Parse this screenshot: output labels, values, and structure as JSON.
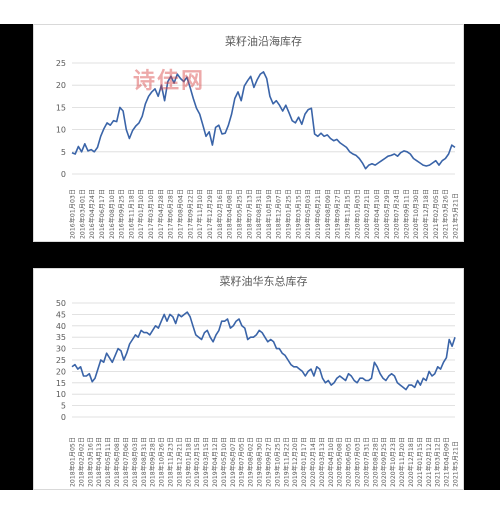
{
  "header_strip": "",
  "footer_strip": "",
  "watermark": "诗佳网",
  "colors": {
    "line": "#3a64a8",
    "grid": "#d9d9d9",
    "axis_text": "#595959",
    "watermark": "#d64040"
  },
  "chart_data": [
    {
      "type": "line",
      "title": "菜籽油沿海库存",
      "xlabel": "",
      "ylabel": "",
      "ylim": [
        0,
        25
      ],
      "yticks": [
        0,
        5,
        10,
        15,
        20,
        25
      ],
      "grid": true,
      "legend": "none",
      "tick_labels": [
        "2016年01月03日",
        "2016年03月01日",
        "2016年04月24日",
        "2016年06月17日",
        "2016年08月10日",
        "2016年09月25日",
        "2016年11月18日",
        "2017年01月10日",
        "2017年03月10日",
        "2017年04月28日",
        "2017年06月28日",
        "2017年08月04日",
        "2017年09月22日",
        "2017年11月10日",
        "2017年12月29日",
        "2018年02月16日",
        "2018年04月08日",
        "2018年05月25日",
        "2018年07月13日",
        "2018年08月31日",
        "2018年10月19日",
        "2018年12月07日",
        "2019年01月25日",
        "2019年03月15日",
        "2019年05月03日",
        "2019年06月21日",
        "2019年08月09日",
        "2019年09月27日",
        "2019年11月15日",
        "2020年01月03日",
        "2020年02月21日",
        "2020年04月10日",
        "2020年05月29日",
        "2020年07月24日",
        "2020年09月11日",
        "2020年10月30日",
        "2020年12月18日",
        "2021年02月05日",
        "2021年03月26日",
        "2021年5月21日"
      ],
      "series": [
        {
          "values": [
            4.8,
            4.5,
            6.2,
            5.0,
            6.8,
            5.2,
            5.5,
            5.0,
            6.0,
            8.5,
            10.2,
            11.5,
            11.0,
            12.0,
            11.8,
            15.0,
            14.2,
            10.0,
            8.0,
            9.8,
            10.8,
            11.5,
            13.0,
            15.8,
            17.5,
            18.5,
            19.2,
            17.5,
            20.0,
            16.5,
            20.8,
            22.0,
            20.5,
            22.5,
            21.5,
            20.8,
            21.8,
            19.5,
            17.0,
            14.8,
            13.5,
            11.0,
            8.5,
            9.5,
            6.5,
            10.5,
            11.0,
            9.0,
            9.2,
            11.0,
            13.5,
            17.0,
            18.5,
            16.5,
            19.8,
            21.0,
            22.0,
            19.5,
            21.2,
            22.5,
            23.0,
            21.5,
            17.5,
            15.8,
            16.5,
            15.5,
            14.2,
            15.5,
            13.8,
            12.0,
            11.5,
            12.8,
            11.2,
            13.5,
            14.5,
            14.8,
            9.0,
            8.5,
            9.2,
            8.5,
            8.8,
            8.0,
            7.5,
            7.8,
            7.0,
            6.5,
            6.0,
            5.0,
            4.5,
            4.2,
            3.5,
            2.5,
            1.2,
            2.0,
            2.3,
            2.0,
            2.5,
            3.0,
            3.5,
            4.0,
            4.2,
            4.5,
            4.0,
            4.8,
            5.2,
            5.0,
            4.5,
            3.5,
            3.0,
            2.5,
            2.0,
            1.8,
            2.0,
            2.5,
            3.0,
            2.0,
            3.0,
            3.5,
            4.5,
            6.5,
            6.0
          ]
        }
      ]
    },
    {
      "type": "line",
      "title": "菜籽油华东总库存",
      "xlabel": "",
      "ylabel": "",
      "ylim": [
        0,
        50
      ],
      "yticks": [
        0,
        5,
        10,
        15,
        20,
        25,
        30,
        35,
        40,
        45,
        50
      ],
      "grid": true,
      "legend": "none",
      "tick_labels": [
        "2018年01月05日",
        "2018年02月02日",
        "2018年03月16日",
        "2018年04月13日",
        "2018年05月11日",
        "2018年06月08日",
        "2018年07月06日",
        "2018年08月03日",
        "2018年08月31日",
        "2018年09月28日",
        "2018年10月26日",
        "2018年11月23日",
        "2018年12月21日",
        "2019年01月18日",
        "2019年02月15日",
        "2019年03月15日",
        "2019年04月12日",
        "2019年05月10日",
        "2019年06月07日",
        "2019年07月05日",
        "2019年08月02日",
        "2019年08月30日",
        "2019年09月27日",
        "2019年10月25日",
        "2019年11月22日",
        "2019年12月20日",
        "2020年01月17日",
        "2020年02月14日",
        "2020年03月13日",
        "2020年04月10日",
        "2020年05月08日",
        "2020年06月05日",
        "2020年07月03日",
        "2020年07月31日",
        "2020年08月28日",
        "2020年09月25日",
        "2020年10月23日",
        "2020年11月20日",
        "2020年12月18日",
        "2021年01月15日",
        "2021年02月12日",
        "2021年03月12日",
        "2021年04月09日",
        "2021年5月21日"
      ],
      "series": [
        {
          "values": [
            22,
            23,
            21,
            22,
            18,
            18,
            19,
            15.5,
            17,
            21,
            25,
            24,
            28,
            26,
            24,
            27,
            30,
            29,
            25,
            28,
            32,
            34,
            36,
            35,
            38,
            37,
            37,
            36,
            38,
            40,
            39,
            42,
            45,
            42,
            45,
            44,
            41,
            45,
            44,
            45,
            46,
            44,
            40,
            36,
            35,
            34,
            37,
            38,
            35,
            33,
            36,
            38,
            42,
            42,
            43,
            39,
            40,
            42,
            43,
            40,
            39,
            34,
            35,
            35,
            36,
            38,
            37,
            35,
            33,
            34,
            33,
            30,
            30,
            28,
            27,
            25,
            23,
            22,
            22,
            21,
            20,
            18,
            20,
            21,
            18,
            22,
            21,
            17,
            15,
            16,
            14,
            15,
            17,
            18,
            17,
            16,
            19,
            18,
            16,
            15,
            17,
            17,
            16,
            16,
            17,
            24,
            22,
            19,
            17,
            16,
            18,
            19,
            18,
            15,
            14,
            13,
            12,
            14,
            14,
            13,
            16,
            14,
            17,
            16,
            20,
            18,
            19,
            22,
            21,
            24,
            26,
            34,
            31,
            35
          ]
        }
      ]
    }
  ]
}
